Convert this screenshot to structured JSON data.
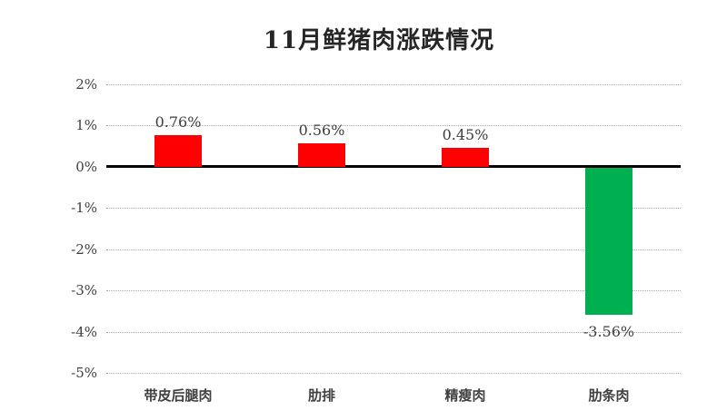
{
  "title": "11月鲜猪肉涨跌情况",
  "colors": {
    "positive_bar": "#FF0000",
    "negative_bar": "#00B050",
    "gridline": "#A9A9A9",
    "zero_axis": "#000000",
    "text": "#404040",
    "background": "#FFFFFF"
  },
  "chart_data": {
    "type": "bar",
    "title": "11月鲜猪肉涨跌情况",
    "categories": [
      "带皮后腿肉",
      "肋排",
      "精瘦肉",
      "肋条肉"
    ],
    "values": [
      0.76,
      0.56,
      0.45,
      -3.56
    ],
    "value_labels": [
      "0.76%",
      "0.56%",
      "0.45%",
      "-3.56%"
    ],
    "bar_colors": [
      "#FF0000",
      "#FF0000",
      "#FF0000",
      "#00B050"
    ],
    "xlabel": "",
    "ylabel": "",
    "ylim": [
      -5,
      2
    ],
    "y_ticks": [
      2,
      1,
      0,
      -1,
      -2,
      -3,
      -4,
      -5
    ],
    "y_tick_labels": [
      "2%",
      "1%",
      "0%",
      "-1%",
      "-2%",
      "-3%",
      "-4%",
      "-5%"
    ],
    "grid": "horizontal-dotted",
    "legend_position": "none"
  }
}
